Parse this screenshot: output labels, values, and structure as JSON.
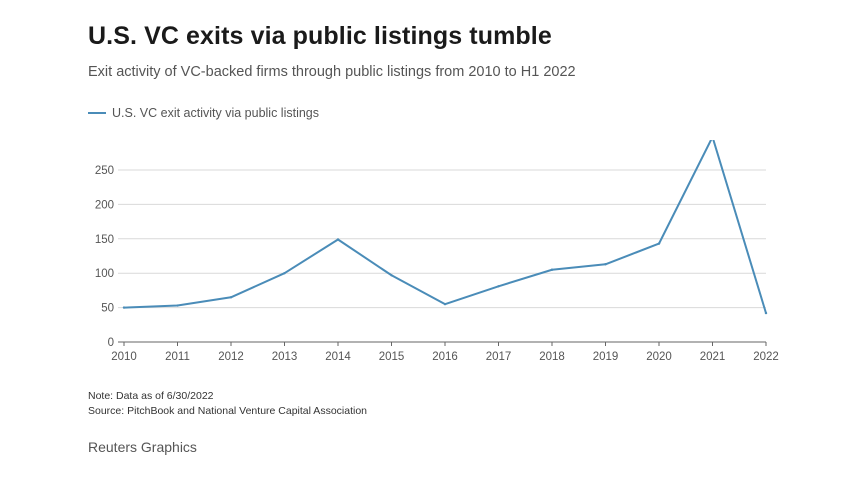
{
  "title": "U.S. VC exits via public listings tumble",
  "subtitle": "Exit activity of VC-backed firms through public listings from 2010 to H1 2022",
  "note": "Note: Data as of 6/30/2022",
  "source": "Source: PitchBook and National Venture Capital Association",
  "credit": "Reuters Graphics",
  "colors": {
    "line": "#4a8cb8",
    "grid": "#d9d9d9",
    "axis": "#666666"
  },
  "chart_data": {
    "type": "line",
    "categories": [
      "2010",
      "2011",
      "2012",
      "2013",
      "2014",
      "2015",
      "2016",
      "2017",
      "2018",
      "2019",
      "2020",
      "2021",
      "2022"
    ],
    "series": [
      {
        "name": "U.S. VC exit activity via public listings",
        "values": [
          50,
          53,
          65,
          100,
          149,
          97,
          55,
          81,
          105,
          113,
          143,
          298,
          42
        ]
      }
    ],
    "yticks": [
      0,
      50,
      100,
      150,
      200,
      250
    ],
    "ylim": [
      0,
      300
    ],
    "grid": true,
    "legend": "top-left"
  }
}
